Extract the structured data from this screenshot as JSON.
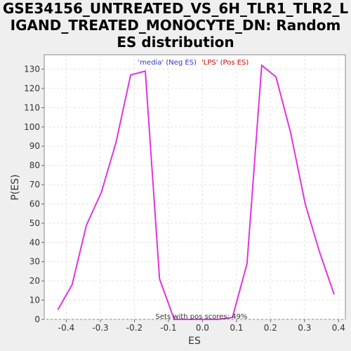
{
  "chart_data": {
    "type": "line",
    "title_lines": [
      "GSE34156_UNTREATED_VS_6H_TLR1_TLR2_L",
      "IGAND_TREATED_MONOCYTE_DN: Random",
      "ES distribution"
    ],
    "xlabel": "ES",
    "ylabel": "P(ES)",
    "xlim": [
      -0.465,
      0.42
    ],
    "ylim": [
      0,
      137.5
    ],
    "x_ticks": [
      -0.4,
      -0.3,
      -0.2,
      -0.1,
      0.0,
      0.1,
      0.2,
      0.3,
      0.4
    ],
    "x_tick_labels": [
      "-0.4",
      "-0.3",
      "-0.2",
      "-0.1",
      "0.0",
      "0.1",
      "0.2",
      "0.3",
      "0.4"
    ],
    "y_ticks": [
      0,
      10,
      20,
      30,
      40,
      50,
      60,
      70,
      80,
      90,
      100,
      110,
      120,
      130
    ],
    "y_tick_labels": [
      "0",
      "10",
      "20",
      "30",
      "40",
      "50",
      "60",
      "70",
      "80",
      "90",
      "100",
      "110",
      "120",
      "130"
    ],
    "grid": true,
    "legend": {
      "placement": "top-center",
      "neg_label": "'media' (Neg ES)",
      "pos_label": "'LPS' (Pos ES)",
      "neg_color": "#3333cc",
      "pos_color": "#cc0000"
    },
    "annotation": "Sets with pos scores: 49%",
    "line_color": "#e033e0",
    "series": [
      {
        "x": [
          -0.425,
          -0.383,
          -0.341,
          -0.297,
          -0.254,
          -0.211,
          -0.168,
          -0.126,
          -0.083,
          -0.04,
          0.003,
          0.046,
          0.088,
          0.131,
          0.174,
          0.216,
          0.259,
          0.302,
          0.344,
          0.387
        ],
        "y": [
          5,
          18,
          49,
          66,
          92,
          127,
          129,
          21,
          0,
          0,
          0,
          0,
          1,
          29,
          132,
          126,
          97,
          60,
          35,
          13
        ]
      }
    ]
  }
}
